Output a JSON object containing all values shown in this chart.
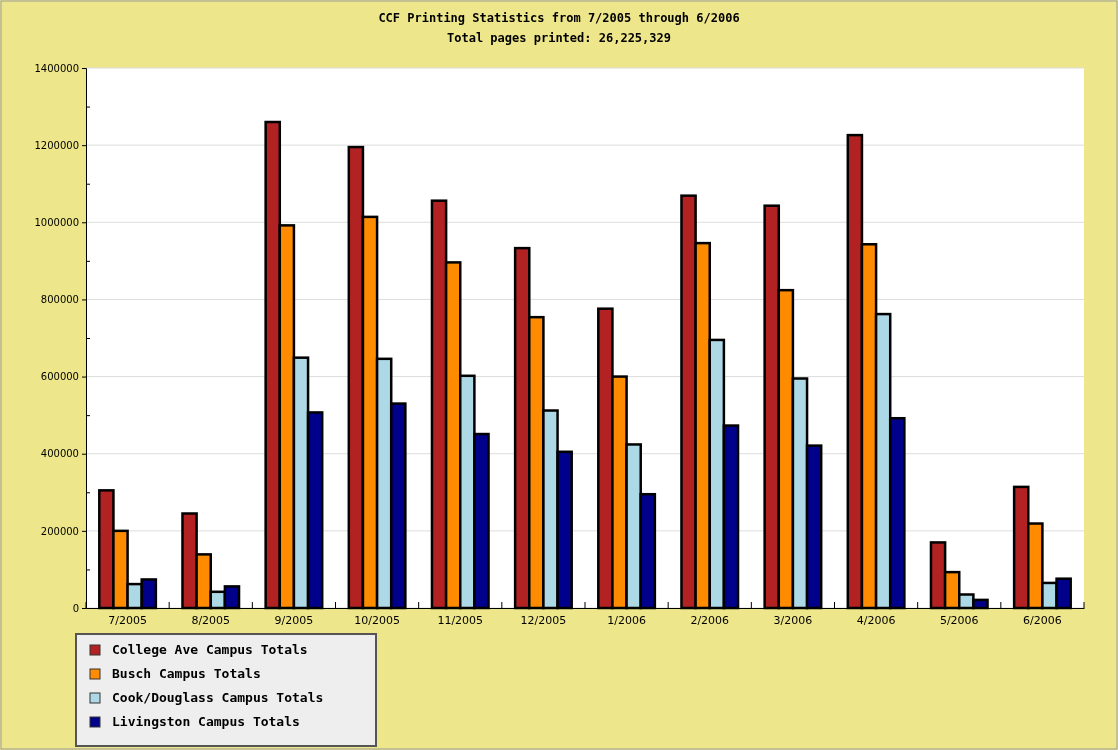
{
  "chart_data": {
    "type": "bar",
    "title": "CCF Printing Statistics from 7/2005 through 6/2006",
    "subtitle": "Total pages printed: 26,225,329",
    "categories": [
      "7/2005",
      "8/2005",
      "9/2005",
      "10/2005",
      "11/2005",
      "12/2005",
      "1/2006",
      "2/2006",
      "3/2006",
      "4/2006",
      "5/2006",
      "6/2006"
    ],
    "series": [
      {
        "name": "College Ave Campus Totals",
        "color": "#b22222",
        "values": [
          305000,
          245000,
          1260000,
          1195000,
          1056000,
          933000,
          776000,
          1069000,
          1043000,
          1226000,
          170000,
          314000
        ]
      },
      {
        "name": "Busch Campus Totals",
        "color": "#ff8c00",
        "values": [
          200000,
          139000,
          992000,
          1014000,
          896000,
          754000,
          600000,
          946000,
          824000,
          943000,
          93000,
          219000
        ]
      },
      {
        "name": "Cook/Douglass Campus Totals",
        "color": "#add8e6",
        "values": [
          62000,
          42000,
          649000,
          646000,
          602000,
          512000,
          424000,
          695000,
          595000,
          762000,
          35000,
          65000
        ]
      },
      {
        "name": "Livingston Campus Totals",
        "color": "#00008b",
        "values": [
          74000,
          56000,
          507000,
          530000,
          451000,
          405000,
          295000,
          473000,
          421000,
          492000,
          21000,
          76000
        ]
      }
    ],
    "ylim": [
      0,
      1400000
    ],
    "yticks": [
      0,
      {
        "value": 100000,
        "label": null
      },
      200000,
      {
        "value": 300000,
        "label": null
      },
      400000,
      {
        "value": 500000,
        "label": null
      },
      600000,
      {
        "value": 700000,
        "label": null
      },
      800000,
      {
        "value": 900000,
        "label": null
      },
      1000000,
      {
        "value": 1100000,
        "label": null
      },
      1200000,
      {
        "value": 1300000,
        "label": null
      },
      1400000
    ],
    "grid": "y",
    "legend": "bottom left"
  }
}
